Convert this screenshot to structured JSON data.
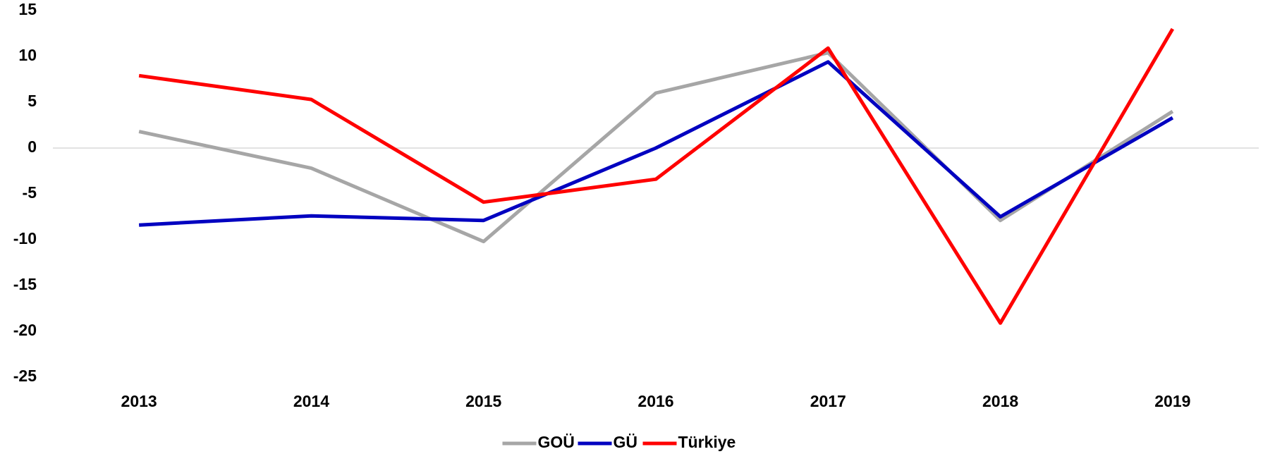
{
  "chart_data": {
    "type": "line",
    "categories": [
      "2013",
      "2014",
      "2015",
      "2016",
      "2017",
      "2018",
      "2019"
    ],
    "series": [
      {
        "name": "GOÜ",
        "color": "#a6a6a6",
        "values": [
          1.8,
          -2.2,
          -10.2,
          6.0,
          10.4,
          -7.9,
          4.0
        ]
      },
      {
        "name": "GÜ",
        "color": "#0000c0",
        "values": [
          -8.4,
          -7.4,
          -7.9,
          0,
          9.4,
          -7.5,
          3.3
        ]
      },
      {
        "name": "Türkiye",
        "color": "#ff0000",
        "values": [
          7.9,
          5.3,
          -5.9,
          -3.4,
          10.9,
          -19.1,
          13.0
        ]
      }
    ],
    "ylim": [
      -25,
      15
    ],
    "yticks": [
      -25,
      -20,
      -15,
      -10,
      -5,
      0,
      5,
      10,
      15
    ],
    "grid": false,
    "legend": "bottom"
  }
}
